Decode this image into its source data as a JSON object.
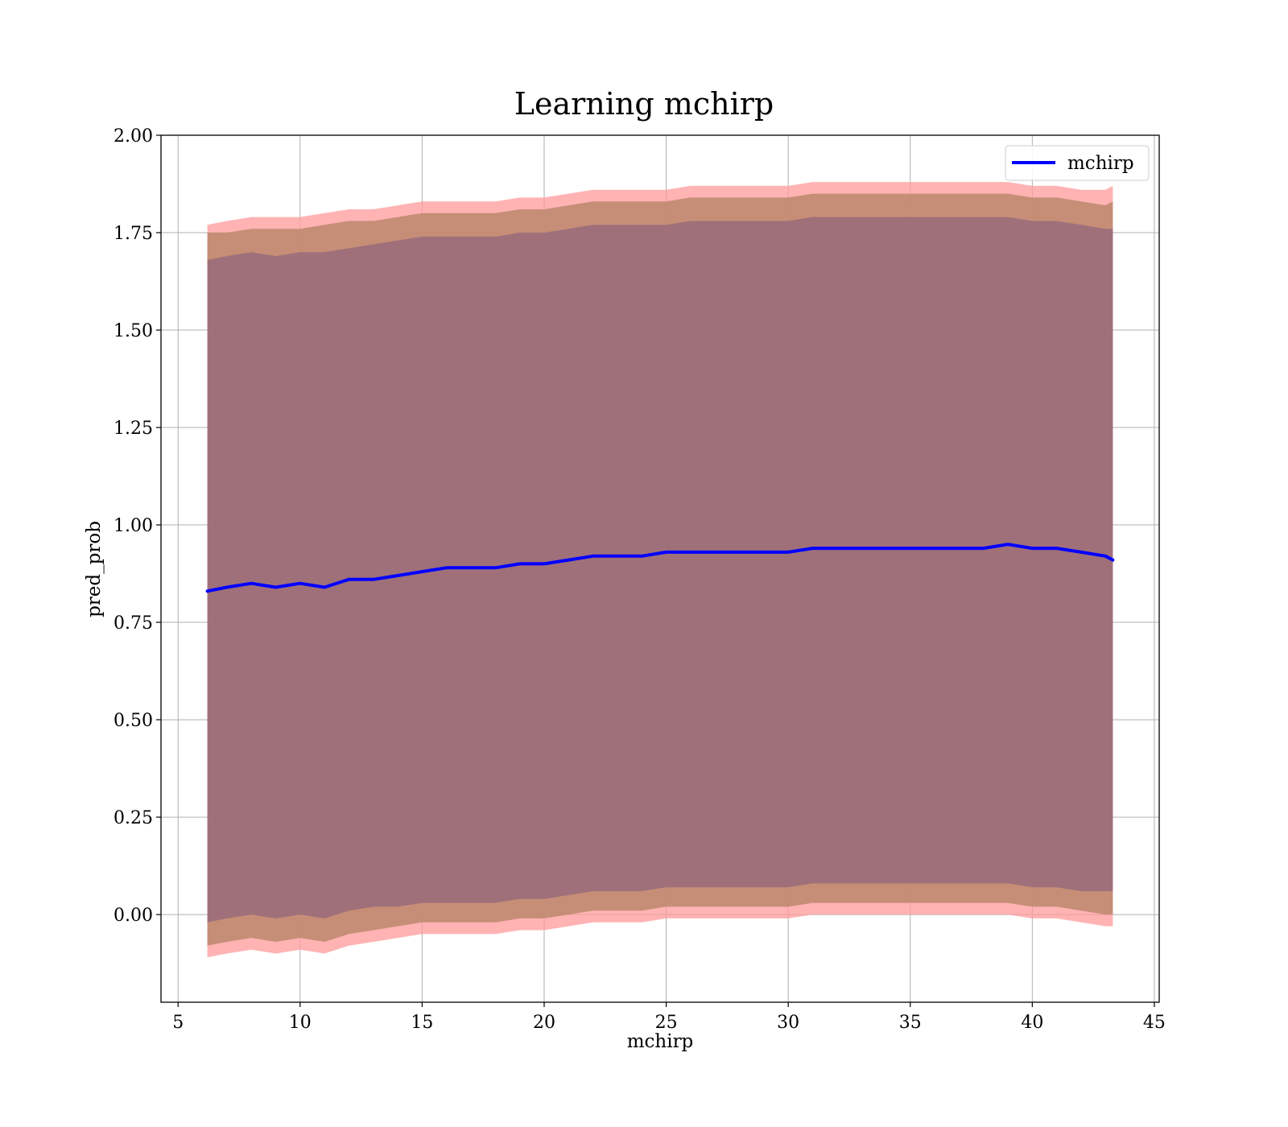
{
  "chart_data": {
    "type": "line",
    "title": "Learning mchirp",
    "xlabel": "mchirp",
    "ylabel": "pred_prob",
    "xlim": [
      4.3,
      45.2
    ],
    "ylim": [
      -0.225,
      2.0
    ],
    "xticks": [
      "5",
      "10",
      "15",
      "20",
      "25",
      "30",
      "35",
      "40",
      "45"
    ],
    "yticks": [
      "0.00",
      "0.25",
      "0.50",
      "0.75",
      "1.00",
      "1.25",
      "1.50",
      "1.75",
      "2.00"
    ],
    "grid": true,
    "legend": {
      "position": "top-right",
      "entries": [
        "mchirp"
      ]
    },
    "colors": {
      "line": "#0000ff",
      "outer_band": "#ff9999",
      "middle_band": "#c08a70",
      "inner_band": "#a0707a"
    },
    "x": [
      6.2,
      7,
      8,
      9,
      10,
      11,
      12,
      13,
      14,
      15,
      16,
      17,
      18,
      19,
      20,
      21,
      22,
      23,
      24,
      25,
      26,
      27,
      28,
      29,
      30,
      31,
      32,
      33,
      34,
      35,
      36,
      37,
      38,
      39,
      40,
      41,
      42,
      43,
      43.3
    ],
    "series": [
      {
        "name": "mchirp",
        "values": [
          0.83,
          0.84,
          0.85,
          0.84,
          0.85,
          0.84,
          0.86,
          0.86,
          0.87,
          0.88,
          0.89,
          0.89,
          0.89,
          0.9,
          0.9,
          0.91,
          0.92,
          0.92,
          0.92,
          0.93,
          0.93,
          0.93,
          0.93,
          0.93,
          0.93,
          0.94,
          0.94,
          0.94,
          0.94,
          0.94,
          0.94,
          0.94,
          0.94,
          0.95,
          0.94,
          0.94,
          0.93,
          0.92,
          0.91
        ]
      }
    ],
    "bands": [
      {
        "level": "outer",
        "upper": [
          1.77,
          1.78,
          1.79,
          1.79,
          1.79,
          1.8,
          1.81,
          1.81,
          1.82,
          1.83,
          1.83,
          1.83,
          1.83,
          1.84,
          1.84,
          1.85,
          1.86,
          1.86,
          1.86,
          1.86,
          1.87,
          1.87,
          1.87,
          1.87,
          1.87,
          1.88,
          1.88,
          1.88,
          1.88,
          1.88,
          1.88,
          1.88,
          1.88,
          1.88,
          1.87,
          1.87,
          1.86,
          1.86,
          1.87
        ],
        "lower": [
          -0.11,
          -0.1,
          -0.09,
          -0.1,
          -0.09,
          -0.1,
          -0.08,
          -0.07,
          -0.06,
          -0.05,
          -0.05,
          -0.05,
          -0.05,
          -0.04,
          -0.04,
          -0.03,
          -0.02,
          -0.02,
          -0.02,
          -0.01,
          -0.01,
          -0.01,
          -0.01,
          -0.01,
          -0.01,
          0.0,
          0.0,
          0.0,
          0.0,
          0.0,
          0.0,
          0.0,
          0.0,
          0.0,
          -0.01,
          -0.01,
          -0.02,
          -0.03,
          -0.03
        ]
      },
      {
        "level": "middle",
        "upper": [
          1.75,
          1.75,
          1.76,
          1.76,
          1.76,
          1.77,
          1.78,
          1.78,
          1.79,
          1.8,
          1.8,
          1.8,
          1.8,
          1.81,
          1.81,
          1.82,
          1.83,
          1.83,
          1.83,
          1.83,
          1.84,
          1.84,
          1.84,
          1.84,
          1.84,
          1.85,
          1.85,
          1.85,
          1.85,
          1.85,
          1.85,
          1.85,
          1.85,
          1.85,
          1.84,
          1.84,
          1.83,
          1.82,
          1.83
        ],
        "lower": [
          -0.08,
          -0.07,
          -0.06,
          -0.07,
          -0.06,
          -0.07,
          -0.05,
          -0.04,
          -0.03,
          -0.02,
          -0.02,
          -0.02,
          -0.02,
          -0.01,
          -0.01,
          0.0,
          0.01,
          0.01,
          0.01,
          0.02,
          0.02,
          0.02,
          0.02,
          0.02,
          0.02,
          0.03,
          0.03,
          0.03,
          0.03,
          0.03,
          0.03,
          0.03,
          0.03,
          0.03,
          0.02,
          0.02,
          0.01,
          0.0,
          0.0
        ]
      },
      {
        "level": "inner",
        "upper": [
          1.68,
          1.69,
          1.7,
          1.69,
          1.7,
          1.7,
          1.71,
          1.72,
          1.73,
          1.74,
          1.74,
          1.74,
          1.74,
          1.75,
          1.75,
          1.76,
          1.77,
          1.77,
          1.77,
          1.77,
          1.78,
          1.78,
          1.78,
          1.78,
          1.78,
          1.79,
          1.79,
          1.79,
          1.79,
          1.79,
          1.79,
          1.79,
          1.79,
          1.79,
          1.78,
          1.78,
          1.77,
          1.76,
          1.76
        ],
        "lower": [
          -0.02,
          -0.01,
          0.0,
          -0.01,
          0.0,
          -0.01,
          0.01,
          0.02,
          0.02,
          0.03,
          0.03,
          0.03,
          0.03,
          0.04,
          0.04,
          0.05,
          0.06,
          0.06,
          0.06,
          0.07,
          0.07,
          0.07,
          0.07,
          0.07,
          0.07,
          0.08,
          0.08,
          0.08,
          0.08,
          0.08,
          0.08,
          0.08,
          0.08,
          0.08,
          0.07,
          0.07,
          0.06,
          0.06,
          0.06
        ]
      }
    ]
  }
}
